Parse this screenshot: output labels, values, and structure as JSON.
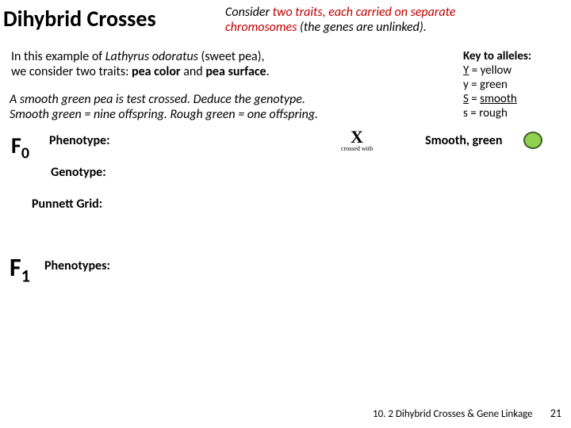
{
  "title": "Dihybrid Crosses",
  "subtitle_pre": "Consider ",
  "subtitle_red": "two traits, each carried on separate chromosomes",
  "subtitle_post": " (the genes are unlinked).",
  "example_line1_pre": "In this example of ",
  "example_line1_species": "Lathyrus odoratus",
  "example_line1_post": " (sweet pea),",
  "example_line2_pre": "we consider two traits: ",
  "example_line2_trait1": "pea color",
  "example_line2_mid": " and ",
  "example_line2_trait2": "pea surface",
  "example_line2_end": ".",
  "testcross_line1": "A smooth green pea is test crossed. Deduce the genotype.",
  "testcross_line2": "Smooth green = nine offspring. Rough green = one offspring.",
  "key_title": "Key to alleles:",
  "key_Y": "Y",
  "key_Y_post": " = yellow",
  "key_y": "y = green",
  "key_S": "S",
  "key_S_post": " = ",
  "key_S_val": "smooth",
  "key_s": "s = rough",
  "f0_label": "F",
  "f0_sub": "0",
  "phenotype_label": "Phenotype:",
  "genotype_label": "Genotype:",
  "punnett_label": "Punnett Grid:",
  "f1_label": "F",
  "f1_sub": "1",
  "phenotypes_label": "Phenotypes:",
  "x_char": "X",
  "x_sub": "crossed with",
  "smooth_green": "Smooth, green",
  "pea_fill": "#92d050",
  "pea_stroke": "#385d24",
  "footer_chapter": "10. 2 Dihybrid Crosses & Gene Linkage",
  "footer_page": "21"
}
